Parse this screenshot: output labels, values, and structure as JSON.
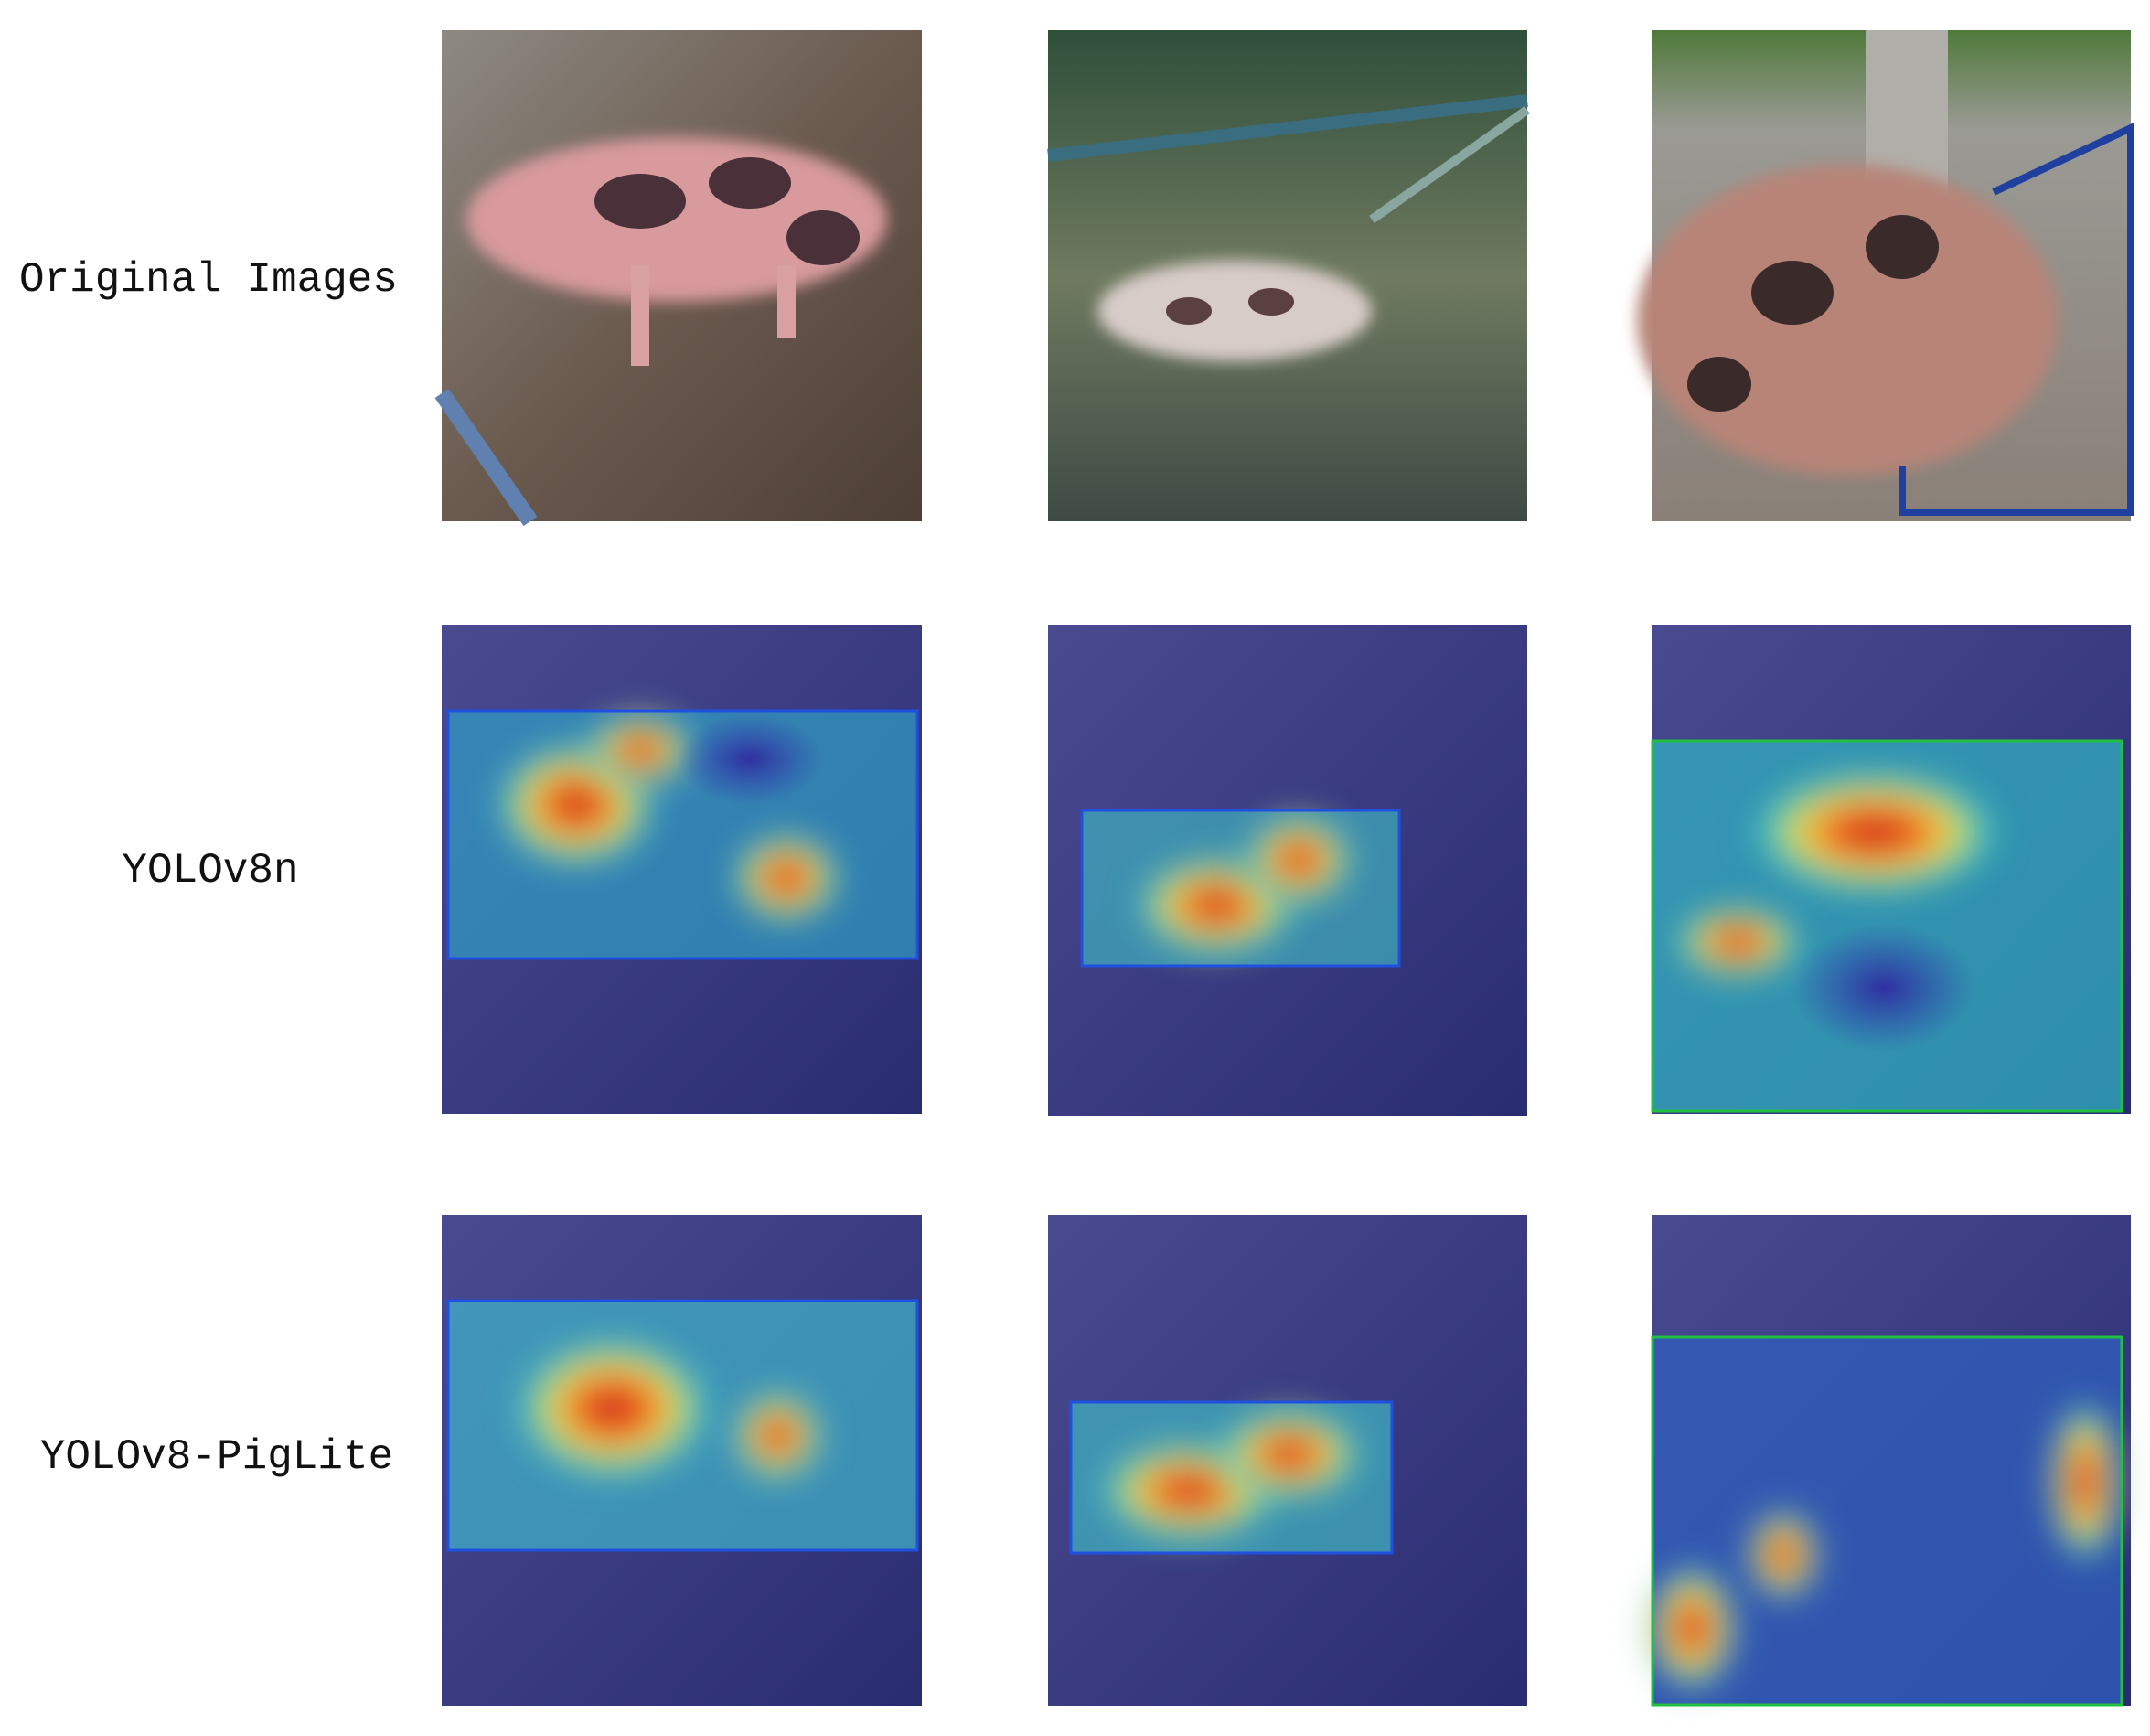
{
  "rows": [
    {
      "label": "Original Images"
    },
    {
      "label": "YOLOv8n"
    },
    {
      "label": "YOLOv8-PigLite"
    }
  ]
}
